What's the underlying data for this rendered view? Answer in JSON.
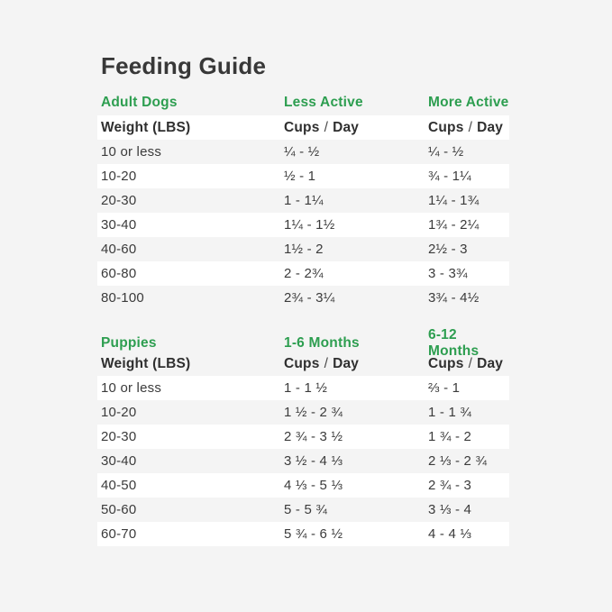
{
  "page": {
    "title": "Feeding Guide"
  },
  "colors": {
    "accent_green": "#2d9e50",
    "text_dark": "#3a3a3a",
    "page_bg": "#f4f4f4",
    "stripe_white": "#ffffff"
  },
  "adult_section": {
    "label": "Adult Dogs",
    "col2_label": "Less Active",
    "col3_label": "More Active",
    "header": {
      "weight": "Weight (LBS)",
      "cups": "Cups",
      "slash": "/",
      "day": "Day"
    },
    "rows": [
      {
        "weight": "10 or less",
        "col2": "¼ - ½",
        "col3": "¼ - ½"
      },
      {
        "weight": "10-20",
        "col2": "½ - 1",
        "col3": "¾ - 1¼"
      },
      {
        "weight": "20-30",
        "col2": "1 - 1¼",
        "col3": "1¼ - 1¾"
      },
      {
        "weight": "30-40",
        "col2": "1¼ - 1½",
        "col3": "1¾ - 2¼"
      },
      {
        "weight": "40-60",
        "col2": "1½ - 2",
        "col3": "2½ - 3"
      },
      {
        "weight": "60-80",
        "col2": "2 - 2¾",
        "col3": "3 - 3¾"
      },
      {
        "weight": "80-100",
        "col2": "2¾ - 3¼",
        "col3": "3¾ - 4½"
      }
    ]
  },
  "puppy_section": {
    "label": "Puppies",
    "col2_label": "1-6 Months",
    "col3_label": "6-12 Months",
    "header": {
      "weight": "Weight (LBS)",
      "cups": "Cups",
      "slash": "/",
      "day": "Day"
    },
    "rows": [
      {
        "weight": "10 or less",
        "col2": "1 - 1 ½",
        "col3": "⅔ - 1"
      },
      {
        "weight": "10-20",
        "col2": "1 ½ - 2 ¾",
        "col3": "1 - 1 ¾"
      },
      {
        "weight": "20-30",
        "col2": "2 ¾ - 3 ½",
        "col3": "1 ¾ - 2"
      },
      {
        "weight": "30-40",
        "col2": "3 ½ - 4 ⅓",
        "col3": "2 ⅓ - 2 ¾"
      },
      {
        "weight": "40-50",
        "col2": "4 ⅓ - 5 ⅓",
        "col3": "2 ¾ - 3"
      },
      {
        "weight": "50-60",
        "col2": "5 - 5 ¾",
        "col3": "3 ⅓ - 4"
      },
      {
        "weight": "60-70",
        "col2": "5 ¾ - 6 ½",
        "col3": "4 - 4 ⅓"
      }
    ]
  }
}
